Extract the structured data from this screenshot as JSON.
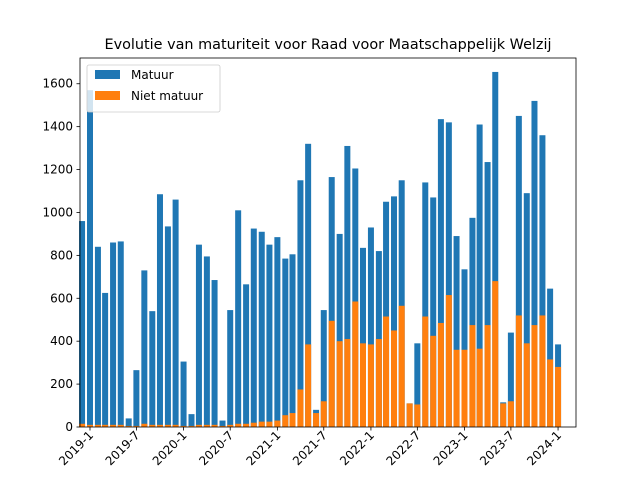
{
  "chart_data": {
    "type": "bar",
    "stacked": "overlay",
    "title": "Evolutie van maturiteit voor Raad voor Maatschappelijk Welzij",
    "xlabel": "",
    "ylabel": "",
    "ylim": [
      0,
      1720
    ],
    "yticks": [
      0,
      200,
      400,
      600,
      800,
      1000,
      1200,
      1400,
      1600
    ],
    "xlim": [
      "2018-11-23",
      "2024-03-11"
    ],
    "xticks": [
      {
        "label": "2019-1",
        "date": "2019-01-01"
      },
      {
        "label": "2019-7",
        "date": "2019-07-01"
      },
      {
        "label": "2020-1",
        "date": "2020-01-01"
      },
      {
        "label": "2020-7",
        "date": "2020-07-01"
      },
      {
        "label": "2021-1",
        "date": "2021-01-01"
      },
      {
        "label": "2021-7",
        "date": "2021-07-01"
      },
      {
        "label": "2022-1",
        "date": "2022-01-01"
      },
      {
        "label": "2022-7",
        "date": "2022-07-01"
      },
      {
        "label": "2023-1",
        "date": "2023-01-01"
      },
      {
        "label": "2023-7",
        "date": "2023-07-01"
      },
      {
        "label": "2024-1",
        "date": "2024-01-01"
      }
    ],
    "legend": {
      "position": "top-left"
    },
    "grid": false,
    "dates": [
      "2018-12-01",
      "2019-01-01",
      "2019-02-01",
      "2019-03-01",
      "2019-04-01",
      "2019-05-01",
      "2019-06-01",
      "2019-07-01",
      "2019-08-01",
      "2019-09-01",
      "2019-10-01",
      "2019-11-01",
      "2019-12-01",
      "2020-01-01",
      "2020-02-01",
      "2020-03-01",
      "2020-04-01",
      "2020-05-01",
      "2020-06-01",
      "2020-07-01",
      "2020-08-01",
      "2020-09-01",
      "2020-10-01",
      "2020-11-01",
      "2020-12-01",
      "2021-01-01",
      "2021-02-01",
      "2021-03-01",
      "2021-04-01",
      "2021-05-01",
      "2021-06-01",
      "2021-07-01",
      "2021-08-01",
      "2021-09-01",
      "2021-10-01",
      "2021-11-01",
      "2021-12-01",
      "2022-01-01",
      "2022-02-01",
      "2022-03-01",
      "2022-04-01",
      "2022-05-01",
      "2022-06-01",
      "2022-07-01",
      "2022-08-01",
      "2022-09-01",
      "2022-10-01",
      "2022-11-01",
      "2022-12-01",
      "2023-01-01",
      "2023-02-01",
      "2023-03-01",
      "2023-04-01",
      "2023-05-01",
      "2023-06-01",
      "2023-07-01",
      "2023-08-01",
      "2023-09-01",
      "2023-10-01",
      "2023-11-01",
      "2023-12-01",
      "2024-01-01",
      "2024-02-01"
    ],
    "series": [
      {
        "name": "Matuur",
        "color": "#1f77b4",
        "values": [
          960,
          1570,
          840,
          625,
          860,
          865,
          40,
          265,
          730,
          540,
          1085,
          935,
          1060,
          305,
          60,
          850,
          795,
          685,
          30,
          545,
          1010,
          665,
          925,
          910,
          850,
          885,
          785,
          805,
          1150,
          1320,
          80,
          545,
          1165,
          900,
          1310,
          1205,
          835,
          930,
          820,
          1050,
          1075,
          1150,
          110,
          390,
          1140,
          1070,
          1435,
          1420,
          890,
          735,
          975,
          1410,
          1235,
          1655,
          115,
          440,
          1450,
          1090,
          1520,
          1360,
          645,
          385,
          0
        ]
      },
      {
        "name": "Niet matuur",
        "color": "#ff7f0e",
        "values": [
          15,
          10,
          10,
          10,
          10,
          10,
          5,
          5,
          15,
          10,
          10,
          10,
          10,
          5,
          5,
          10,
          10,
          10,
          5,
          10,
          15,
          15,
          20,
          25,
          25,
          30,
          55,
          65,
          175,
          385,
          65,
          120,
          495,
          400,
          410,
          585,
          390,
          385,
          410,
          515,
          450,
          565,
          110,
          105,
          515,
          425,
          485,
          615,
          360,
          360,
          475,
          365,
          475,
          680,
          110,
          120,
          520,
          390,
          475,
          520,
          315,
          280,
          0
        ]
      }
    ]
  }
}
